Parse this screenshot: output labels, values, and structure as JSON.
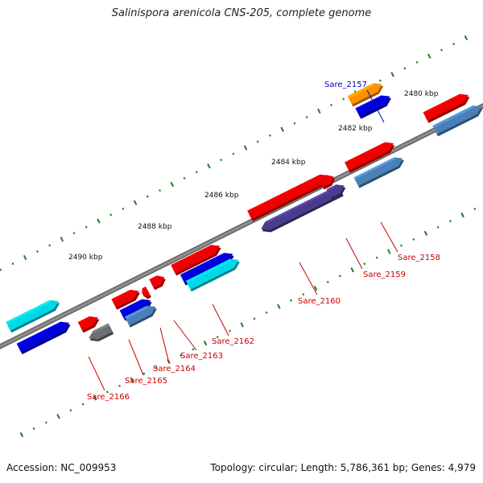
{
  "title": "Salinispora arenicola CNS-205, complete genome",
  "footer": {
    "accession": "Accession: NC_009953",
    "summary": "Topology: circular; Length: 5,786,361 bp; Genes: 4,979"
  },
  "colors": {
    "background": "#ffffff",
    "backbone": "#8c8c8c",
    "tick": "#1f7a1f",
    "label_red": "#cc0000",
    "label_blue": "#0000cc",
    "red": "#ee0000",
    "blue": "#0000dd",
    "cyan": "#00d8e8",
    "orange": "#ff9000",
    "steelblue": "#4a80b8",
    "slate": "#4a3c8c",
    "gray": "#6e6e6e"
  },
  "scale_labels": [
    "2480 kbp",
    "2482 kbp",
    "2484 kbp",
    "2486 kbp",
    "2488 kbp",
    "2490 kbp"
  ],
  "genes": [
    {
      "label": "Sare_2157",
      "color": "blue"
    },
    {
      "label": "Sare_2158",
      "color": "red"
    },
    {
      "label": "Sare_2159",
      "color": "red"
    },
    {
      "label": "Sare_2160",
      "color": "red"
    },
    {
      "label": "Sare_2162",
      "color": "red"
    },
    {
      "label": "Sare_2163",
      "color": "red"
    },
    {
      "label": "Sare_2164",
      "color": "red"
    },
    {
      "label": "Sare_2165",
      "color": "red"
    },
    {
      "label": "Sare_2166",
      "color": "red"
    }
  ]
}
